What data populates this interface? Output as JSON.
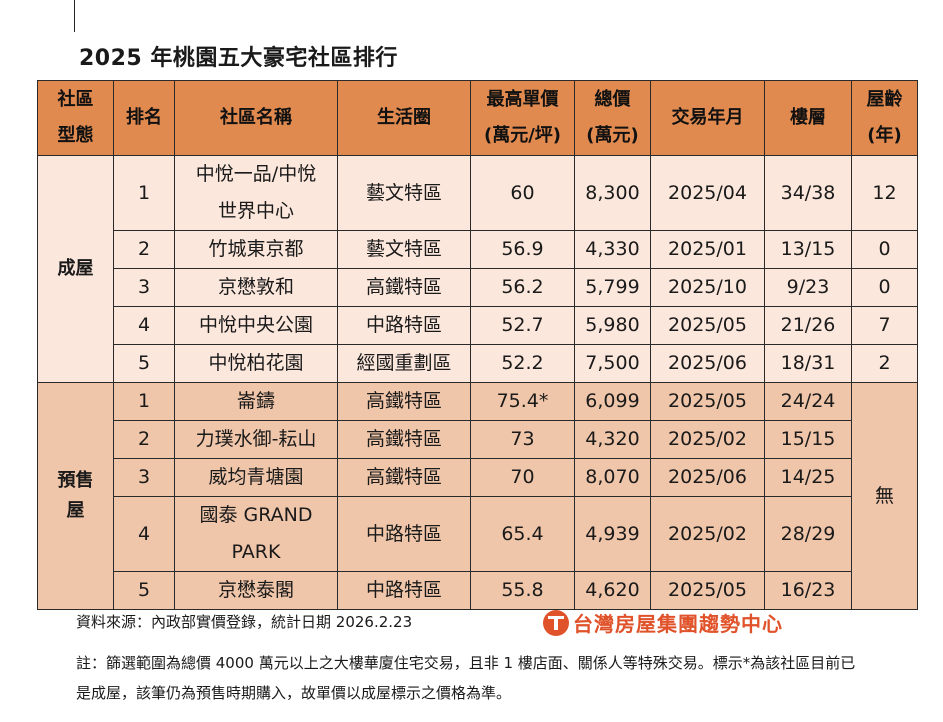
{
  "title": "2025 年桃園五大豪宅社區排行",
  "headers": {
    "type": [
      "社區",
      "型態"
    ],
    "rank": "排名",
    "name": "社區名稱",
    "area": "生活圈",
    "price": [
      "最高單價",
      "(萬元/坪)"
    ],
    "total": [
      "總價",
      "(萬元)"
    ],
    "date": "交易年月",
    "floor": "樓層",
    "age": [
      "屋齡",
      "(年)"
    ]
  },
  "groups": [
    {
      "type": [
        "成屋"
      ],
      "rows": [
        {
          "rank": "1",
          "name": [
            "中悅一品/中悅",
            "世界中心"
          ],
          "area": "藝文特區",
          "price": "60",
          "total": "8,300",
          "date": "2025/04",
          "floor": "34/38",
          "age": "12"
        },
        {
          "rank": "2",
          "name": [
            "竹城東京都"
          ],
          "area": "藝文特區",
          "price": "56.9",
          "total": "4,330",
          "date": "2025/01",
          "floor": "13/15",
          "age": "0"
        },
        {
          "rank": "3",
          "name": [
            "京懋敦和"
          ],
          "area": "高鐵特區",
          "price": "56.2",
          "total": "5,799",
          "date": "2025/10",
          "floor": "9/23",
          "age": "0"
        },
        {
          "rank": "4",
          "name": [
            "中悅中央公園"
          ],
          "area": "中路特區",
          "price": "52.7",
          "total": "5,980",
          "date": "2025/05",
          "floor": "21/26",
          "age": "7"
        },
        {
          "rank": "5",
          "name": [
            "中悅柏花園"
          ],
          "area": "經國重劃區",
          "price": "52.2",
          "total": "7,500",
          "date": "2025/06",
          "floor": "18/31",
          "age": "2"
        }
      ]
    },
    {
      "type": [
        "預售",
        "屋"
      ],
      "age_merged": "無",
      "rows": [
        {
          "rank": "1",
          "name": [
            "崙鑄"
          ],
          "area": "高鐵特區",
          "price": "75.4*",
          "total": "6,099",
          "date": "2025/05",
          "floor": "24/24"
        },
        {
          "rank": "2",
          "name": [
            "力璞水御-耘山"
          ],
          "area": "高鐵特區",
          "price": "73",
          "total": "4,320",
          "date": "2025/02",
          "floor": "15/15"
        },
        {
          "rank": "3",
          "name": [
            "威均青塘園"
          ],
          "area": "高鐵特區",
          "price": "70",
          "total": "8,070",
          "date": "2025/06",
          "floor": "14/25"
        },
        {
          "rank": "4",
          "name": [
            "國泰 GRAND",
            "PARK"
          ],
          "area": "中路特區",
          "price": "65.4",
          "total": "4,939",
          "date": "2025/02",
          "floor": "28/29"
        },
        {
          "rank": "5",
          "name": [
            "京懋泰閣"
          ],
          "area": "中路特區",
          "price": "55.8",
          "total": "4,620",
          "date": "2025/05",
          "floor": "16/23"
        }
      ]
    }
  ],
  "source": "資料來源：內政部實價登錄，統計日期 2026.2.23",
  "logo_text": "台灣房屋集團趨勢中心",
  "note": "註：篩選範圍為總價 4000 萬元以上之大樓華廈住宅交易，且非 1 樓店面、關係人等特殊交易。標示*為該社區目前已是成屋，該筆仍為預售時期購入，故單價以成屋標示之價格為準。"
}
